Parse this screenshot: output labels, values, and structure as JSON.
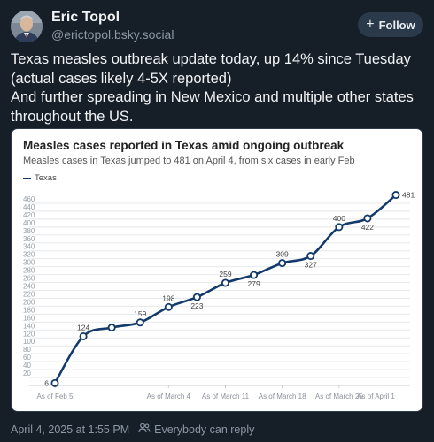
{
  "author": {
    "name": "Eric Topol",
    "handle": "@erictopol.bsky.social"
  },
  "follow_label": "Follow",
  "post_lines": [
    "Texas measles outbreak update today, up 14% since Tuesday (actual cases likely 4-5X reported)",
    "And further spreading in New Mexico and multiple other states throughout the US."
  ],
  "footer": {
    "timestamp": "April 4, 2025 at 1:55 PM",
    "reply_setting": "Everybody can reply"
  },
  "icons": {
    "follow": "plus-icon",
    "reply_setting": "people-icon"
  },
  "colors": {
    "background": "#161e27",
    "line": "#133a6b",
    "follow_button": "#2b3a4a"
  },
  "chart_data": {
    "type": "line",
    "title": "Measles cases reported in Texas amid ongoing outbreak",
    "subtitle": "Measles cases in Texas jumped to 481 on April 4, from six cases in early Feb",
    "legend": [
      "Texas"
    ],
    "x_tick_labels": [
      "As of Feb 5",
      "As of March 4",
      "As of March 11",
      "As of March 18",
      "As of March 25",
      "As of April 1"
    ],
    "y_ticks": [
      20,
      40,
      60,
      80,
      100,
      120,
      140,
      160,
      180,
      200,
      220,
      240,
      260,
      280,
      300,
      320,
      340,
      360,
      380,
      400,
      420,
      440,
      460
    ],
    "ylim": [
      0,
      480
    ],
    "grid": true,
    "series": [
      {
        "name": "Texas",
        "values": [
          6,
          124,
          146,
          159,
          198,
          223,
          259,
          279,
          309,
          327,
          400,
          422,
          481
        ],
        "labels": [
          "6",
          "124",
          "",
          "159",
          "198",
          "223",
          "259",
          "279",
          "309",
          "327",
          "400",
          "422",
          "481"
        ]
      }
    ]
  }
}
